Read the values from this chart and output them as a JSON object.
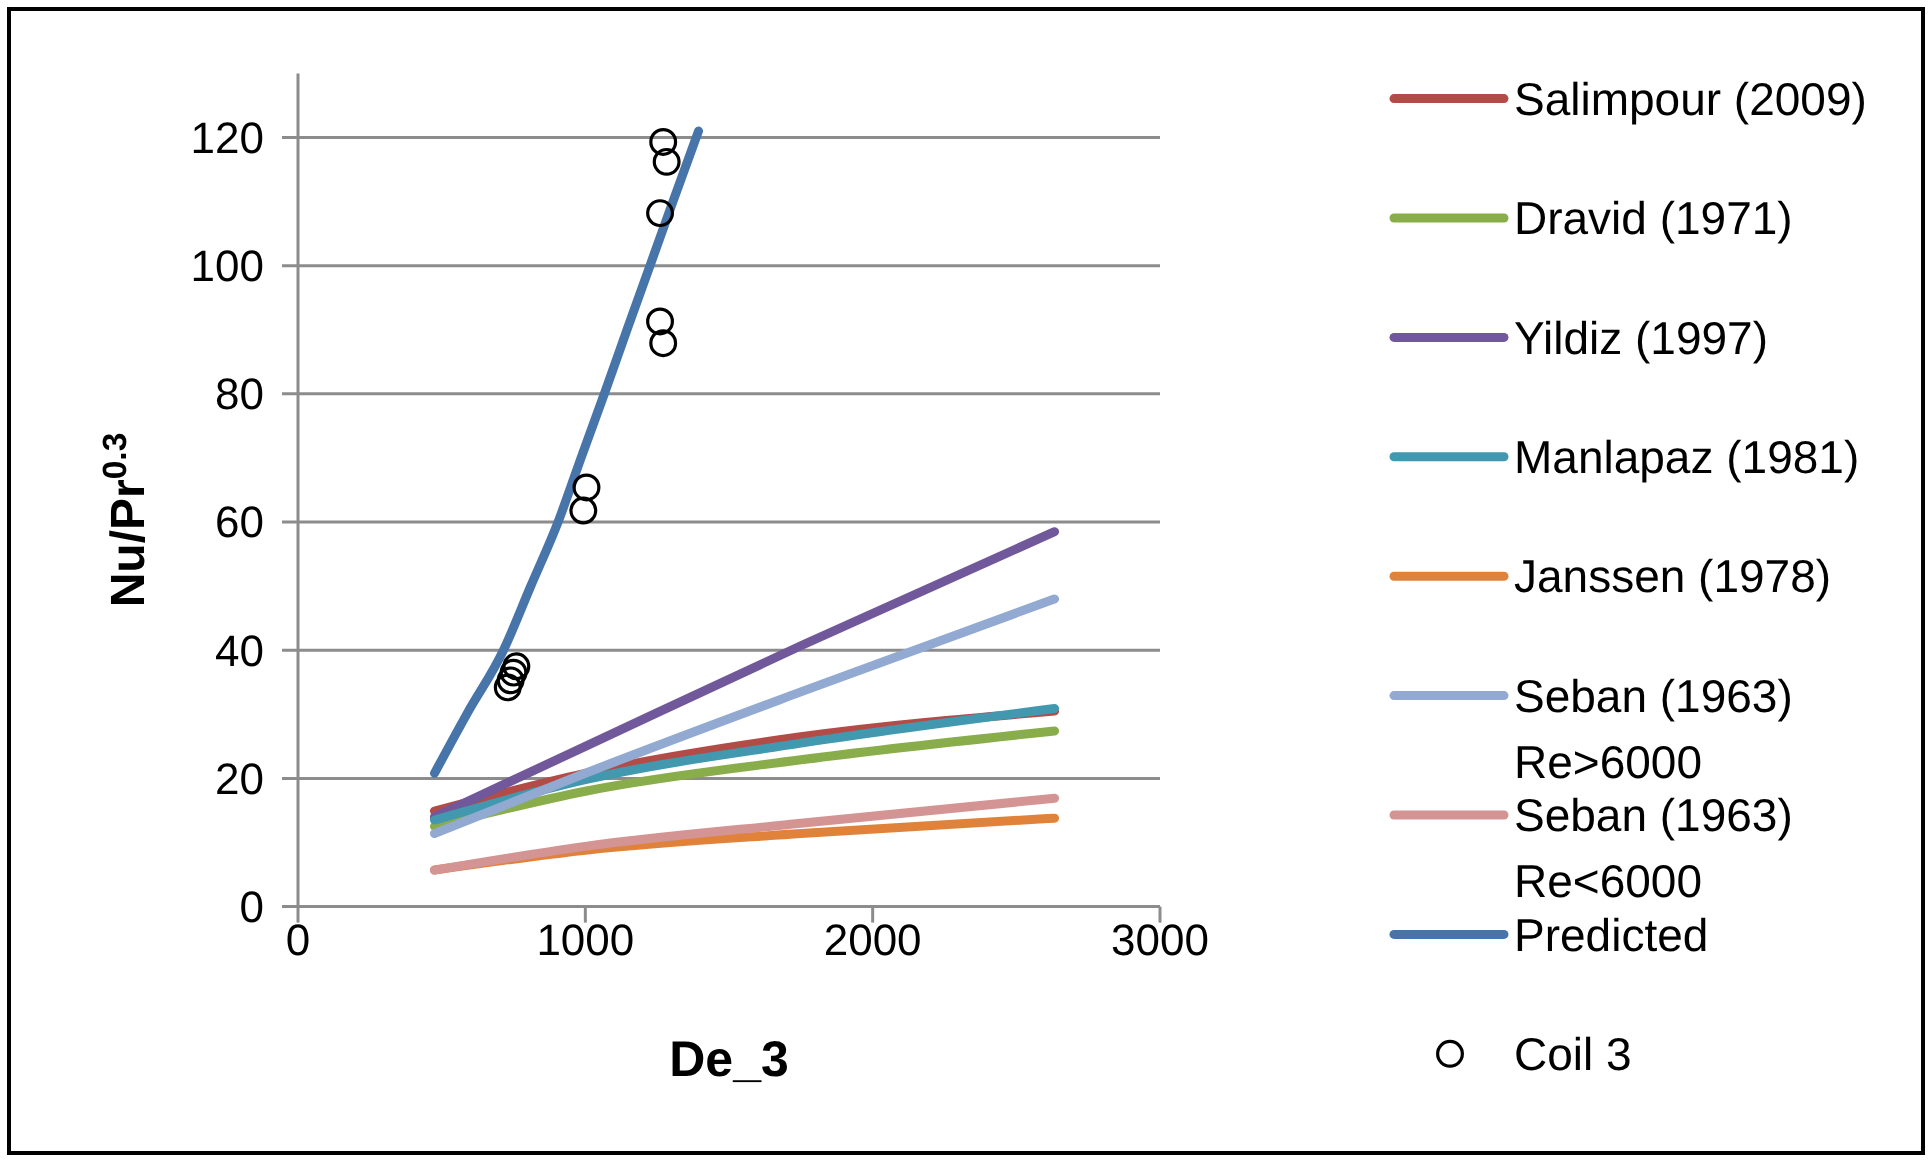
{
  "chart_data": {
    "type": "line",
    "xlabel": "De_3",
    "ylabel": "Nu/Pr$^{0.3}$",
    "xlim": [
      0,
      3000
    ],
    "xticks": [
      0,
      1000,
      2000,
      3000
    ],
    "ylim": [
      0,
      130
    ],
    "yticks": [
      0,
      20,
      40,
      60,
      80,
      100,
      120
    ],
    "grid": "y",
    "legend": "right",
    "line_style": "solid",
    "series": [
      {
        "name": "Salimpour (2009)",
        "color": "#b34b47",
        "x": [
          475,
          1000,
          1750,
          2633
        ],
        "values": [
          14.9,
          20.8,
          26.5,
          30.5
        ]
      },
      {
        "name": "Dravid (1971)",
        "color": "#8aad4b",
        "x": [
          475,
          1000,
          1750,
          2633
        ],
        "values": [
          12.5,
          18.0,
          22.9,
          27.4
        ]
      },
      {
        "name": "Yildiz (1997)",
        "color": "#71589a",
        "x": [
          475,
          1000,
          1750,
          2633
        ],
        "values": [
          14.0,
          25.0,
          40.7,
          58.5
        ]
      },
      {
        "name": "Manlapaz (1981)",
        "color": "#4198af",
        "x": [
          475,
          1000,
          1750,
          2633
        ],
        "values": [
          13.5,
          19.8,
          25.5,
          30.9
        ]
      },
      {
        "name": "Janssen (1978)",
        "color": "#e0823a",
        "x": [
          475,
          1000,
          1750,
          2633
        ],
        "values": [
          5.7,
          8.8,
          11.4,
          13.8
        ]
      },
      {
        "name": "Seban (1963) Re>6000",
        "color": "#92aad1",
        "x": [
          475,
          1000,
          1750,
          2633
        ],
        "values": [
          11.4,
          20.8,
          33.5,
          48.0
        ]
      },
      {
        "name": "Seban (1963) Re<6000",
        "color": "#d49494",
        "x": [
          475,
          1000,
          1750,
          2633
        ],
        "values": [
          5.7,
          9.4,
          13.0,
          16.9
        ]
      },
      {
        "name": "Predicted",
        "color": "#4775aa",
        "x": [
          475,
          587,
          715,
          810,
          905,
          985,
          1066,
          1145,
          1225,
          1305,
          1394
        ],
        "values": [
          20.8,
          30,
          40,
          50,
          60,
          70,
          80,
          90,
          100,
          110,
          121
        ]
      },
      {
        "name": "Coil 3",
        "type": "scatter",
        "marker": "circle",
        "color": "#000000",
        "x": [
          1271,
          1283,
          1260,
          1260,
          1271,
          1004,
          993,
          760,
          750,
          740,
          730
        ],
        "values": [
          119.3,
          116.2,
          108.2,
          91.3,
          87.9,
          65.4,
          61.8,
          37.5,
          36.5,
          35.3,
          34.2
        ]
      }
    ]
  }
}
